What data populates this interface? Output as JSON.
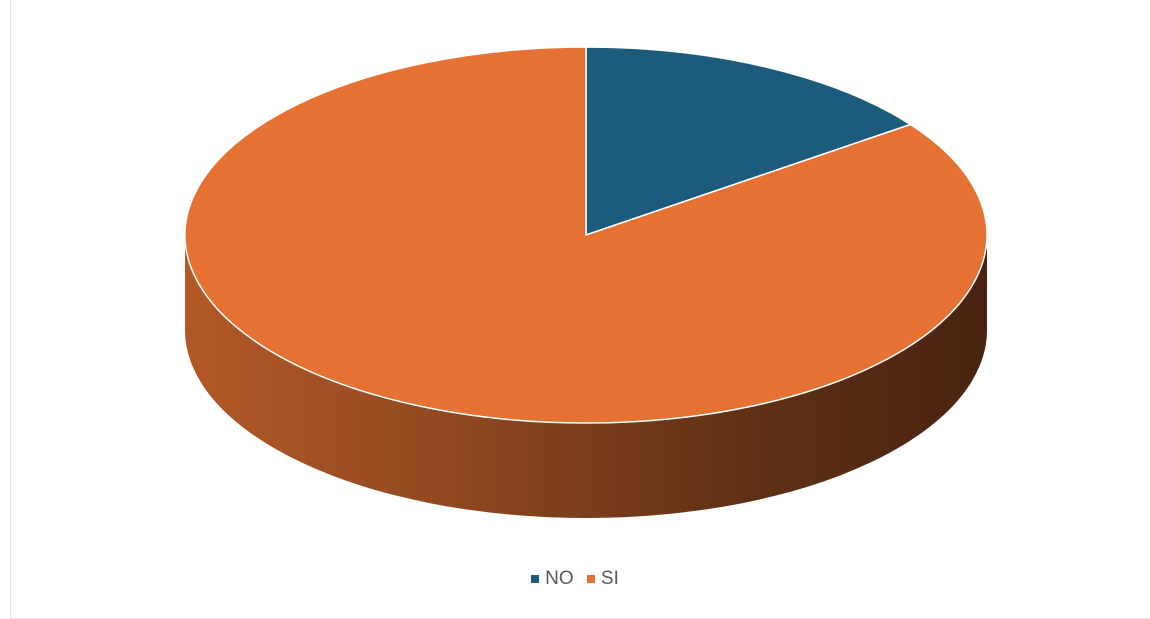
{
  "chart_data": {
    "type": "pie",
    "style": "3d",
    "categories": [
      "NO",
      "SI"
    ],
    "values": [
      15,
      85
    ],
    "colors": [
      "#1d5b7d",
      "#e57232"
    ],
    "legend": {
      "position": "bottom",
      "entries": [
        "NO",
        "SI"
      ]
    }
  }
}
